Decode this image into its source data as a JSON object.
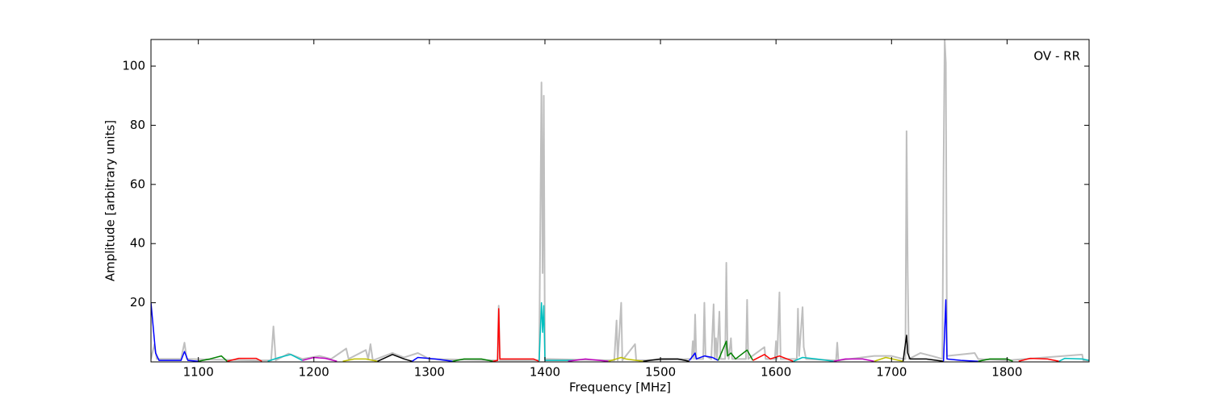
{
  "chart_data": {
    "type": "line",
    "annotation": "OV - RR",
    "x_label": "Frequency [MHz]",
    "y_label": "Amplitude [arbitrary units]",
    "xlim": [
      1059,
      1871
    ],
    "ylim": [
      0,
      109
    ],
    "xticks": [
      1100,
      1200,
      1300,
      1400,
      1500,
      1600,
      1700,
      1800
    ],
    "yticks": [
      20,
      40,
      60,
      80,
      100
    ],
    "grid": false,
    "series": [
      {
        "color": "#bfbfbf",
        "x": [
          1059,
          1062,
          1064,
          1085,
          1088,
          1090,
          1150,
          1163,
          1165,
          1167,
          1178,
          1190,
          1205,
          1215,
          1228,
          1230,
          1245,
          1247,
          1249,
          1251,
          1268,
          1278,
          1290,
          1300,
          1359,
          1360,
          1361,
          1395,
          1397,
          1398,
          1399,
          1400,
          1460,
          1462,
          1463,
          1466,
          1467,
          1478,
          1479,
          1527,
          1528,
          1529,
          1530,
          1531,
          1537,
          1538,
          1539,
          1544,
          1546,
          1547,
          1548,
          1549,
          1551,
          1552,
          1556,
          1557,
          1558,
          1559,
          1561,
          1562,
          1574,
          1575,
          1576,
          1590,
          1591,
          1599,
          1600,
          1601,
          1603,
          1604,
          1618,
          1619,
          1620,
          1623,
          1624,
          1626,
          1652,
          1653,
          1654,
          1685,
          1700,
          1710,
          1712,
          1713,
          1714,
          1715,
          1725,
          1735,
          1744,
          1745,
          1746,
          1747,
          1748,
          1772,
          1775,
          1800,
          1865,
          1866,
          1871
        ],
        "values": [
          1,
          6,
          1,
          1,
          6.5,
          1,
          0.5,
          0.5,
          12,
          0.5,
          2.8,
          1,
          2,
          1,
          4.5,
          1,
          4,
          1,
          6,
          0.5,
          3,
          1.5,
          3,
          1,
          0.5,
          19,
          0.5,
          0.5,
          94.5,
          30,
          90,
          1,
          0.5,
          14,
          0.5,
          20,
          0.5,
          6,
          0.5,
          1,
          7,
          1,
          16,
          1,
          1,
          20,
          2,
          1,
          19.5,
          1,
          8,
          1,
          17,
          1,
          1,
          33.5,
          5,
          1,
          8,
          1,
          1,
          21,
          1,
          5,
          1,
          1,
          7,
          1,
          23.5,
          1,
          1,
          18,
          2,
          18.5,
          5,
          1,
          0.5,
          6.5,
          0.5,
          2,
          2,
          1,
          1,
          78,
          30,
          1,
          3,
          2,
          1,
          64,
          109,
          101,
          2,
          3,
          1,
          0.5,
          2.5,
          0.5,
          0.5
        ]
      },
      {
        "color": "#0000ff",
        "x": [
          1059,
          1063,
          1066,
          1085,
          1088,
          1091,
          1100
        ],
        "values": [
          20,
          3,
          0.5,
          0.5,
          3.5,
          0.5,
          0.2
        ]
      },
      {
        "color": "#008000",
        "x": [
          1100,
          1110,
          1120,
          1125
        ],
        "values": [
          0.2,
          1,
          2,
          0.2
        ]
      },
      {
        "color": "#ff0000",
        "x": [
          1125,
          1135,
          1150,
          1155
        ],
        "values": [
          0.2,
          1.2,
          1.2,
          0.2
        ]
      },
      {
        "color": "#00bfbf",
        "x": [
          1160,
          1170,
          1180,
          1190
        ],
        "values": [
          0.2,
          1.5,
          2.5,
          0.5
        ]
      },
      {
        "color": "#bf00bf",
        "x": [
          1190,
          1200,
          1210,
          1220
        ],
        "values": [
          0.5,
          1.5,
          1.2,
          0.2
        ]
      },
      {
        "color": "#bfbf00",
        "x": [
          1225,
          1235,
          1245,
          1255
        ],
        "values": [
          0.2,
          1,
          1,
          0.2
        ]
      },
      {
        "color": "#000000",
        "x": [
          1255,
          1268,
          1278,
          1285
        ],
        "values": [
          0.2,
          2.5,
          1,
          0.2
        ]
      },
      {
        "color": "#0000ff",
        "x": [
          1285,
          1290,
          1305,
          1320
        ],
        "values": [
          0.2,
          1.5,
          1,
          0.2
        ]
      },
      {
        "color": "#008000",
        "x": [
          1320,
          1330,
          1345,
          1355
        ],
        "values": [
          0.2,
          1,
          1,
          0.2
        ]
      },
      {
        "color": "#ff0000",
        "x": [
          1355,
          1359,
          1360,
          1361,
          1375,
          1390,
          1395
        ],
        "values": [
          0.2,
          0.5,
          18,
          1,
          1,
          1,
          0.2
        ]
      },
      {
        "color": "#00bfbf",
        "x": [
          1395,
          1397,
          1398,
          1399,
          1400,
          1425
        ],
        "values": [
          0.2,
          20,
          10,
          19,
          0.5,
          0.5
        ]
      },
      {
        "color": "#bf00bf",
        "x": [
          1420,
          1435,
          1455
        ],
        "values": [
          0.2,
          1,
          0.2
        ]
      },
      {
        "color": "#bfbf00",
        "x": [
          1455,
          1466,
          1470,
          1485
        ],
        "values": [
          0.2,
          1.5,
          1,
          0.2
        ]
      },
      {
        "color": "#000000",
        "x": [
          1485,
          1500,
          1515,
          1525
        ],
        "values": [
          0.2,
          1,
          1,
          0.2
        ]
      },
      {
        "color": "#0000ff",
        "x": [
          1525,
          1530,
          1531,
          1538,
          1545,
          1550
        ],
        "values": [
          0.5,
          3,
          1,
          2,
          1.5,
          0.5
        ]
      },
      {
        "color": "#008000",
        "x": [
          1550,
          1557,
          1558,
          1561,
          1565,
          1575,
          1580
        ],
        "values": [
          0.5,
          7,
          2,
          3,
          1,
          4,
          0.5
        ]
      },
      {
        "color": "#ff0000",
        "x": [
          1580,
          1590,
          1595,
          1603,
          1615
        ],
        "values": [
          0.5,
          2.5,
          1,
          2,
          0.2
        ]
      },
      {
        "color": "#00bfbf",
        "x": [
          1615,
          1623,
          1635,
          1650
        ],
        "values": [
          0.2,
          1.5,
          1,
          0.2
        ]
      },
      {
        "color": "#bf00bf",
        "x": [
          1650,
          1660,
          1675,
          1685
        ],
        "values": [
          0.2,
          1,
          1,
          0.2
        ]
      },
      {
        "color": "#bfbf00",
        "x": [
          1685,
          1695,
          1710
        ],
        "values": [
          0.2,
          1.5,
          0.2
        ]
      },
      {
        "color": "#000000",
        "x": [
          1710,
          1713,
          1714,
          1716,
          1730,
          1745
        ],
        "values": [
          0.2,
          9,
          3,
          1,
          1,
          0.2
        ]
      },
      {
        "color": "#0000ff",
        "x": [
          1745,
          1747,
          1748,
          1760,
          1775
        ],
        "values": [
          0.2,
          21,
          1,
          0.5,
          0.2
        ]
      },
      {
        "color": "#008000",
        "x": [
          1775,
          1785,
          1800,
          1805
        ],
        "values": [
          0.2,
          1,
          1,
          0.2
        ]
      },
      {
        "color": "#ff0000",
        "x": [
          1810,
          1820,
          1835,
          1845
        ],
        "values": [
          0.2,
          1.2,
          1,
          0.2
        ]
      },
      {
        "color": "#00bfbf",
        "x": [
          1845,
          1850,
          1865,
          1871
        ],
        "values": [
          0.2,
          1.2,
          1,
          0.5
        ]
      }
    ]
  }
}
